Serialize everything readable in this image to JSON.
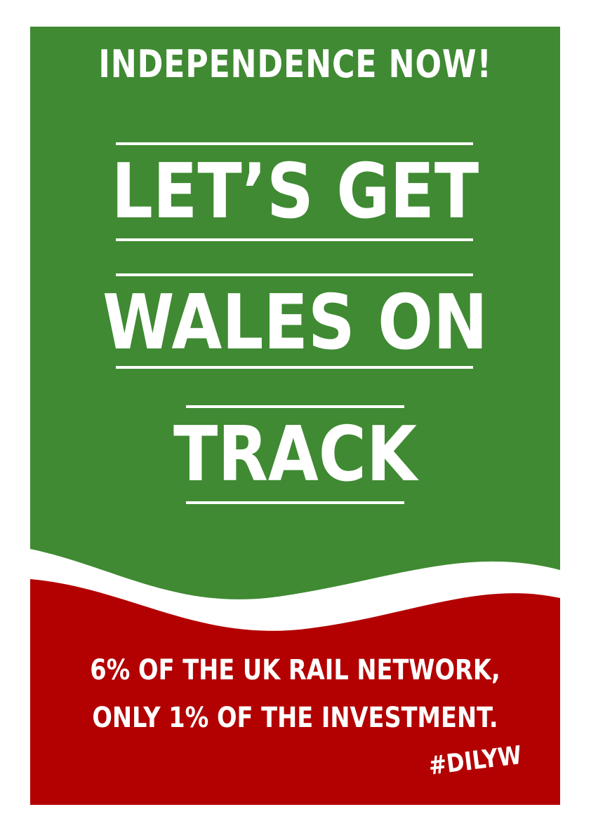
{
  "poster": {
    "top_slogan": "INDEPENDENCE NOW!",
    "main_lines": [
      "LET’S GET",
      "WALES ON",
      "TRACK"
    ],
    "bottom_lines": [
      "6% OF THE UK RAIL NETWORK,",
      "ONLY 1% OF THE INVESTMENT."
    ],
    "hashtag": "#DILYW"
  },
  "colors": {
    "green": "#3f8a32",
    "red": "#b30000",
    "white": "#ffffff"
  }
}
